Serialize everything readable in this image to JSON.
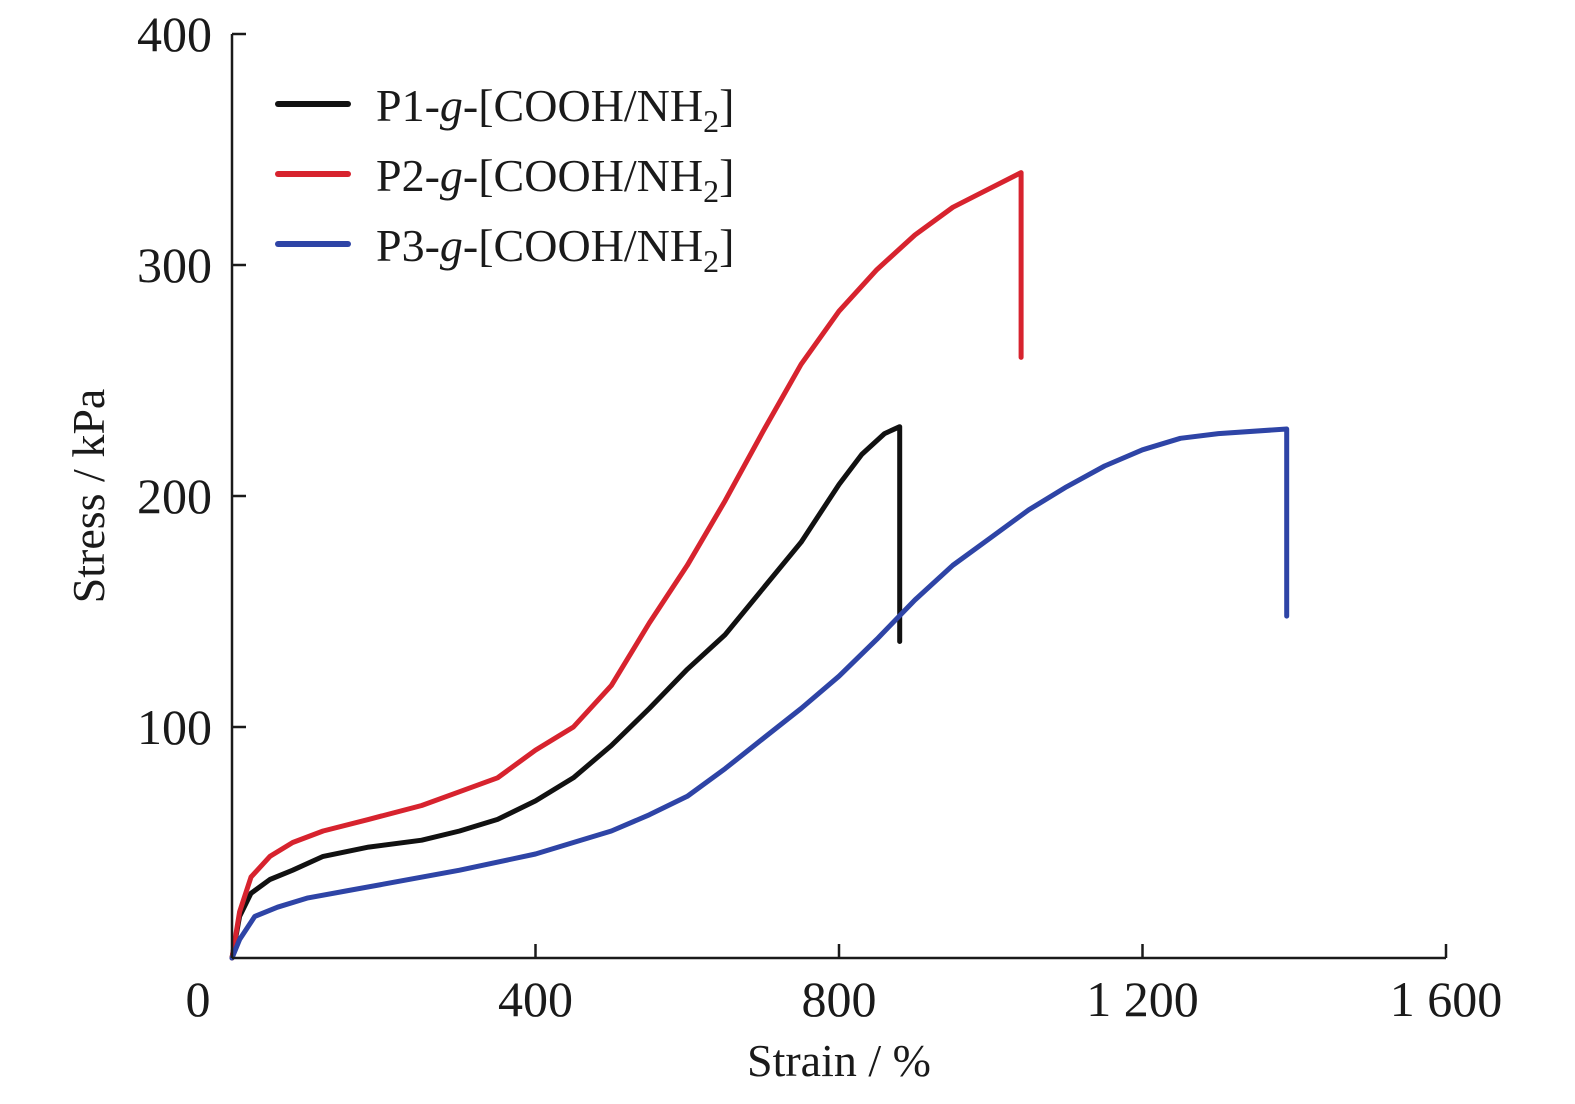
{
  "chart_data": {
    "type": "line",
    "title": "",
    "xlabel": "Strain / %",
    "ylabel": "Stress / kPa",
    "xlim": [
      0,
      1600
    ],
    "ylim": [
      0,
      400
    ],
    "x_ticks": [
      0,
      400,
      800,
      1200,
      1600
    ],
    "x_tick_labels": [
      "0",
      "400",
      "800",
      "1 200",
      "1 600"
    ],
    "y_ticks": [
      100,
      200,
      300,
      400
    ],
    "y_tick_labels": [
      "100",
      "200",
      "300",
      "400"
    ],
    "grid": false,
    "legend_position": "top-left",
    "series": [
      {
        "name": "P1-g-[COOH/NH2]",
        "legend": {
          "prefix": "P1-",
          "italic": "g",
          "middle": "-[COOH/NH",
          "sub": "2",
          "suffix": "]"
        },
        "color": "#111111",
        "points": [
          [
            0,
            0
          ],
          [
            10,
            18
          ],
          [
            25,
            28
          ],
          [
            50,
            34
          ],
          [
            80,
            38
          ],
          [
            120,
            44
          ],
          [
            180,
            48
          ],
          [
            250,
            51
          ],
          [
            300,
            55
          ],
          [
            350,
            60
          ],
          [
            400,
            68
          ],
          [
            450,
            78
          ],
          [
            500,
            92
          ],
          [
            550,
            108
          ],
          [
            600,
            125
          ],
          [
            650,
            140
          ],
          [
            700,
            160
          ],
          [
            750,
            180
          ],
          [
            800,
            205
          ],
          [
            830,
            218
          ],
          [
            860,
            227
          ],
          [
            880,
            230
          ],
          [
            880,
            137
          ]
        ]
      },
      {
        "name": "P2-g-[COOH/NH2]",
        "legend": {
          "prefix": "P2-",
          "italic": "g",
          "middle": "-[COOH/NH",
          "sub": "2",
          "suffix": "]"
        },
        "color": "#d7232e",
        "points": [
          [
            0,
            0
          ],
          [
            10,
            20
          ],
          [
            25,
            35
          ],
          [
            50,
            44
          ],
          [
            80,
            50
          ],
          [
            120,
            55
          ],
          [
            180,
            60
          ],
          [
            250,
            66
          ],
          [
            300,
            72
          ],
          [
            350,
            78
          ],
          [
            400,
            90
          ],
          [
            450,
            100
          ],
          [
            500,
            118
          ],
          [
            550,
            145
          ],
          [
            600,
            170
          ],
          [
            650,
            198
          ],
          [
            700,
            228
          ],
          [
            750,
            257
          ],
          [
            800,
            280
          ],
          [
            850,
            298
          ],
          [
            900,
            313
          ],
          [
            950,
            325
          ],
          [
            980,
            330
          ],
          [
            1040,
            340
          ],
          [
            1040,
            260
          ]
        ]
      },
      {
        "name": "P3-g-[COOH/NH2]",
        "legend": {
          "prefix": "P3-",
          "italic": "g",
          "middle": "-[COOH/NH",
          "sub": "2",
          "suffix": "]"
        },
        "color": "#2e44a6",
        "points": [
          [
            0,
            0
          ],
          [
            10,
            8
          ],
          [
            30,
            18
          ],
          [
            60,
            22
          ],
          [
            100,
            26
          ],
          [
            150,
            29
          ],
          [
            200,
            32
          ],
          [
            300,
            38
          ],
          [
            400,
            45
          ],
          [
            450,
            50
          ],
          [
            500,
            55
          ],
          [
            550,
            62
          ],
          [
            600,
            70
          ],
          [
            650,
            82
          ],
          [
            700,
            95
          ],
          [
            750,
            108
          ],
          [
            800,
            122
          ],
          [
            850,
            138
          ],
          [
            900,
            155
          ],
          [
            950,
            170
          ],
          [
            1000,
            182
          ],
          [
            1050,
            194
          ],
          [
            1100,
            204
          ],
          [
            1150,
            213
          ],
          [
            1200,
            220
          ],
          [
            1250,
            225
          ],
          [
            1300,
            227
          ],
          [
            1390,
            229
          ],
          [
            1390,
            148
          ]
        ]
      }
    ]
  }
}
